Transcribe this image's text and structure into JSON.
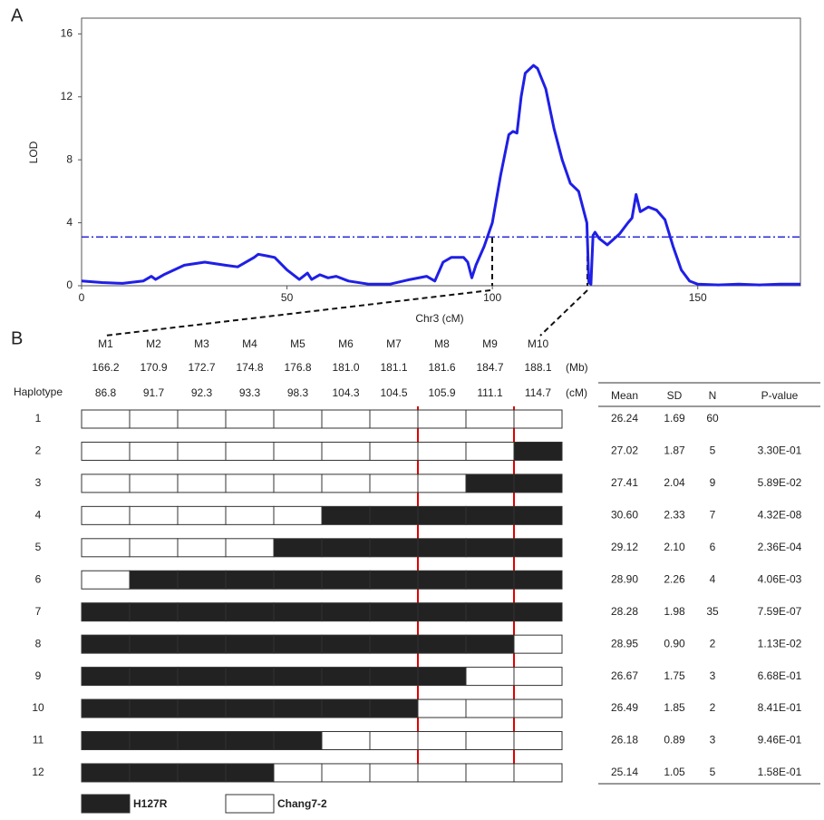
{
  "chart_data": {
    "type": "line",
    "panel_label": "A",
    "xlabel": "Chr3 (cM)",
    "ylabel": "LOD",
    "x": [
      0,
      5,
      10,
      15,
      17,
      18,
      20,
      25,
      30,
      35,
      38,
      42,
      43,
      45,
      47,
      50,
      53,
      55,
      56,
      58,
      60,
      62,
      65,
      70,
      75,
      80,
      84,
      86,
      88,
      90,
      93,
      94,
      95,
      96,
      98,
      100,
      102,
      104,
      105,
      106,
      107,
      108,
      110,
      111,
      113,
      115,
      117,
      119,
      121,
      123,
      123.5,
      124,
      124.5,
      125,
      126,
      128,
      131,
      133,
      134,
      135,
      136,
      138,
      140,
      142,
      144,
      146,
      148,
      150,
      155,
      160,
      165,
      170,
      175
    ],
    "values": [
      0.3,
      0.2,
      0.15,
      0.3,
      0.6,
      0.4,
      0.7,
      1.3,
      1.5,
      1.3,
      1.2,
      1.8,
      2.0,
      1.9,
      1.8,
      1.0,
      0.4,
      0.8,
      0.4,
      0.7,
      0.5,
      0.6,
      0.3,
      0.1,
      0.1,
      0.4,
      0.6,
      0.3,
      1.5,
      1.8,
      1.8,
      1.5,
      0.5,
      1.3,
      2.5,
      4.0,
      7.0,
      9.6,
      9.8,
      9.7,
      12.0,
      13.5,
      14.0,
      13.8,
      12.5,
      10.0,
      8.0,
      6.5,
      6.0,
      4.0,
      0.2,
      0.1,
      3.2,
      3.4,
      3.0,
      2.6,
      3.3,
      4.0,
      4.3,
      5.8,
      4.7,
      5.0,
      4.8,
      4.2,
      2.5,
      1.0,
      0.3,
      0.1,
      0.05,
      0.1,
      0.05,
      0.1,
      0.1
    ],
    "color": "#1f1fe6",
    "threshold": 3.1,
    "threshold_color": "#2a2ad8",
    "xlim": [
      0,
      175
    ],
    "xticks": [
      0,
      50,
      100,
      150
    ],
    "ylim": [
      0,
      17
    ],
    "yticks": [
      0,
      4,
      8,
      12,
      16
    ]
  },
  "panel_b": {
    "label": "B",
    "haplotype_header": "Haplotype",
    "mb_unit": "(Mb)",
    "cm_unit": "(cM)",
    "markers": [
      "M1",
      "M2",
      "M3",
      "M4",
      "M5",
      "M6",
      "M7",
      "M8",
      "M9",
      "M10"
    ],
    "mb": [
      "166.2",
      "170.9",
      "172.7",
      "174.8",
      "176.8",
      "181.0",
      "181.1",
      "181.6",
      "184.7",
      "188.1"
    ],
    "cm": [
      "86.8",
      "91.7",
      "92.3",
      "93.3",
      "98.3",
      "104.3",
      "104.5",
      "105.9",
      "111.1",
      "114.7"
    ],
    "haplotypes": [
      "1",
      "2",
      "3",
      "4",
      "5",
      "6",
      "7",
      "8",
      "9",
      "10",
      "11",
      "12"
    ],
    "genotypes": [
      [
        0,
        0,
        0,
        0,
        0,
        0,
        0,
        0,
        0,
        0
      ],
      [
        0,
        0,
        0,
        0,
        0,
        0,
        0,
        0,
        0,
        1
      ],
      [
        0,
        0,
        0,
        0,
        0,
        0,
        0,
        0,
        1,
        1
      ],
      [
        0,
        0,
        0,
        0,
        0,
        1,
        1,
        1,
        1,
        1
      ],
      [
        0,
        0,
        0,
        0,
        1,
        1,
        1,
        1,
        1,
        1
      ],
      [
        0,
        1,
        1,
        1,
        1,
        1,
        1,
        1,
        1,
        1
      ],
      [
        1,
        1,
        1,
        1,
        1,
        1,
        1,
        1,
        1,
        1
      ],
      [
        1,
        1,
        1,
        1,
        1,
        1,
        1,
        1,
        1,
        0
      ],
      [
        1,
        1,
        1,
        1,
        1,
        1,
        1,
        1,
        0,
        0
      ],
      [
        1,
        1,
        1,
        1,
        1,
        1,
        1,
        0,
        0,
        0
      ],
      [
        1,
        1,
        1,
        1,
        1,
        0,
        0,
        0,
        0,
        0
      ],
      [
        1,
        1,
        1,
        1,
        0,
        0,
        0,
        0,
        0,
        0
      ]
    ],
    "stats_headers": [
      "Mean",
      "SD",
      "N",
      "P-value"
    ],
    "stats": [
      [
        "26.24",
        "1.69",
        "60",
        null
      ],
      [
        "27.02",
        "1.87",
        "5",
        "3.30E-01"
      ],
      [
        "27.41",
        "2.04",
        "9",
        "5.89E-02"
      ],
      [
        "30.60",
        "2.33",
        "7",
        "4.32E-08"
      ],
      [
        "29.12",
        "2.10",
        "6",
        "2.36E-04"
      ],
      [
        "28.90",
        "2.26",
        "4",
        "4.06E-03"
      ],
      [
        "28.28",
        "1.98",
        "35",
        "7.59E-07"
      ],
      [
        "28.95",
        "0.90",
        "2",
        "1.13E-02"
      ],
      [
        "26.67",
        "1.75",
        "3",
        "6.68E-01"
      ],
      [
        "26.49",
        "1.85",
        "2",
        "8.41E-01"
      ],
      [
        "26.18",
        "0.89",
        "3",
        "9.46E-01"
      ],
      [
        "25.14",
        "1.05",
        "5",
        "1.58E-01"
      ]
    ],
    "legend": [
      {
        "label": "H127R",
        "color": "#222222"
      },
      {
        "label": "Chang7-2",
        "color": "#ffffff"
      }
    ]
  }
}
